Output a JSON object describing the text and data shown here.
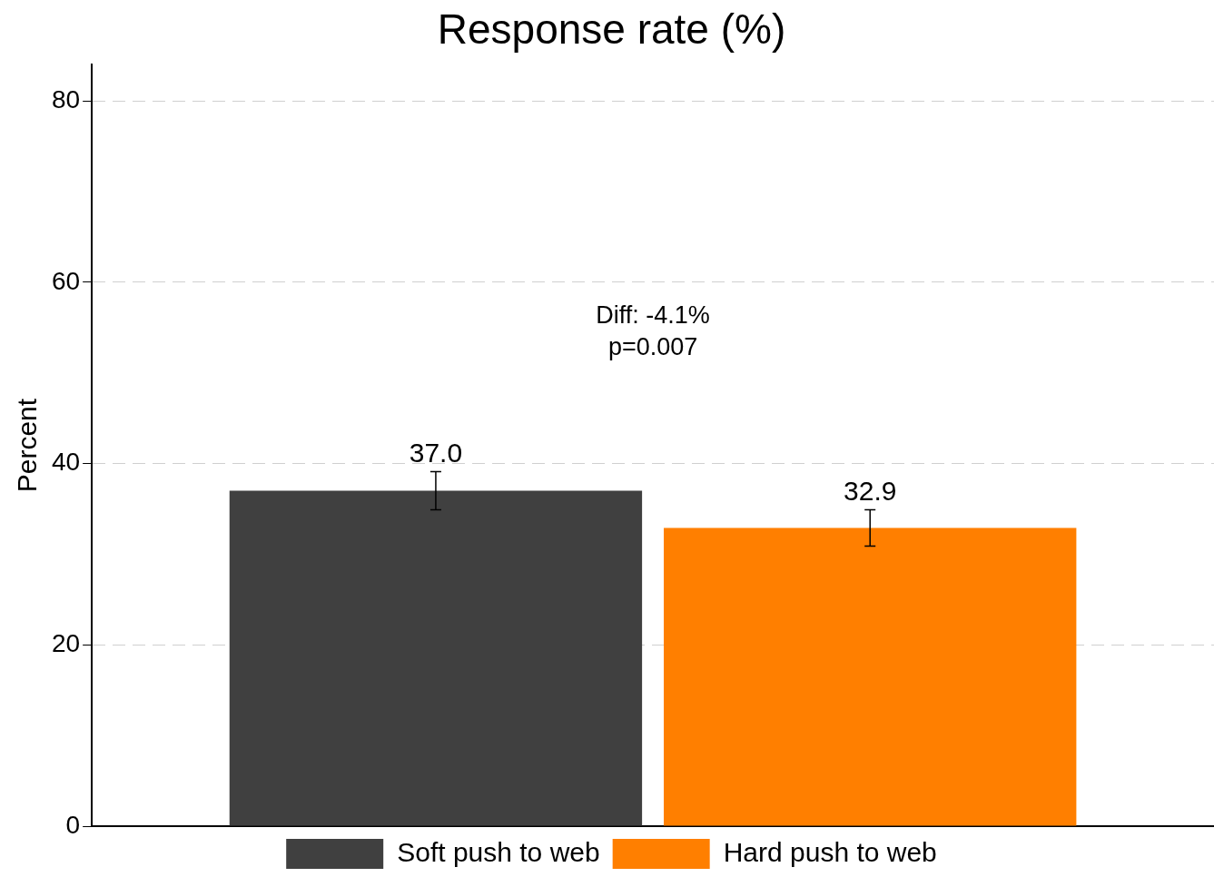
{
  "chart_data": {
    "type": "bar",
    "title": "Response rate (%)",
    "ylabel": "Percent",
    "categories": [
      null
    ],
    "series": [
      {
        "name": "Soft push to web",
        "color": "#404040",
        "values": [
          37.0
        ],
        "value_labels": [
          "37.0"
        ],
        "errors": [
          2.1
        ]
      },
      {
        "name": "Hard push to web",
        "color": "#ff7f00",
        "values": [
          32.9
        ],
        "value_labels": [
          "32.9"
        ],
        "errors": [
          2.0
        ]
      }
    ],
    "ylim": [
      0,
      84
    ],
    "yticks": [
      0,
      20,
      40,
      60,
      80
    ],
    "grid": "y",
    "legend": "bottom",
    "annotations": [
      "Diff: -4.1%",
      "p=0.007"
    ]
  }
}
